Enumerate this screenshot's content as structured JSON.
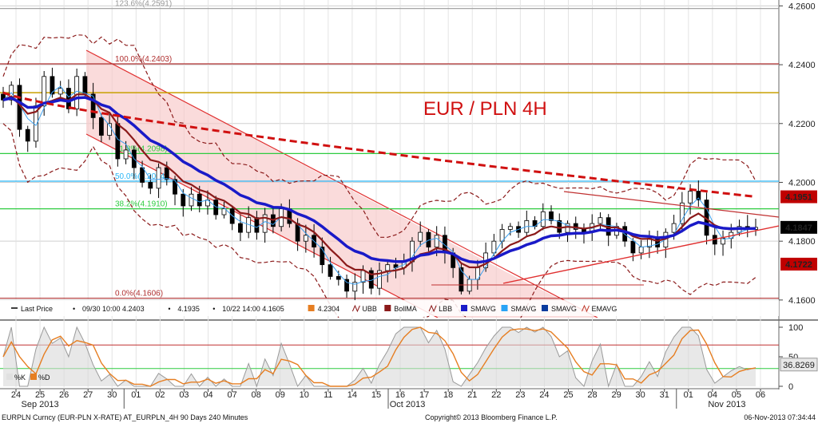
{
  "chart_data": {
    "type": "candlestick",
    "title": "EUR / PLN 4H",
    "footer": {
      "left": "EURPLN Curncy (EUR-PLN X-RATE) AT_EURPLN_4H 90 Days 240 Minutes",
      "center": "Copyright© 2013 Bloomberg Finance L.P.",
      "right": "06-Nov-2013 07:34:44"
    },
    "y_axis": {
      "range": [
        4.154,
        4.262
      ],
      "ticks": [
        "4.2600",
        "4.2400",
        "4.2200",
        "4.2000",
        "4.1800",
        "4.1600"
      ],
      "tick_values": [
        4.26,
        4.24,
        4.22,
        4.2,
        4.18,
        4.16
      ]
    },
    "price_tags": [
      {
        "label": "4.1951",
        "value": 4.1951,
        "color": "#c00000"
      },
      {
        "label": "4.1847",
        "value": 4.1847,
        "color": "#000000"
      },
      {
        "label": "4.1722",
        "value": 4.1722,
        "color": "#c00000"
      }
    ],
    "x_axis": {
      "ticks": [
        "24",
        "25",
        "26",
        "27",
        "30",
        "01",
        "02",
        "03",
        "04",
        "07",
        "08",
        "09",
        "10",
        "11",
        "14",
        "15",
        "16",
        "17",
        "18",
        "21",
        "22",
        "23",
        "24",
        "25",
        "28",
        "29",
        "30",
        "31",
        "01",
        "04",
        "05",
        "06"
      ],
      "months": [
        "Sep 2013",
        "Oct 2013",
        "Nov 2013"
      ]
    },
    "fibonacci": [
      {
        "label": "123.6%(4.2591)",
        "value": 4.2591,
        "color": "#999999"
      },
      {
        "label": "100.0%(4.2403)",
        "value": 4.2403,
        "color": "#b03030"
      },
      {
        "label": "61.8%(4.2098)",
        "value": 4.2098,
        "color": "#2ecc40"
      },
      {
        "label": "50.0%(4.2004)",
        "value": 4.2004,
        "color": "#29b6f6"
      },
      {
        "label": "38.2%(4.1910)",
        "value": 4.191,
        "color": "#2ecc40"
      },
      {
        "label": "0.0%(4.1606)",
        "value": 4.1606,
        "color": "#b03030"
      }
    ],
    "extra_levels": [
      4.2305
    ],
    "legend": [
      {
        "label": "Last Price",
        "color": "#000000"
      },
      {
        "label": "09/30 10:00 4.2403",
        "color": "#000000"
      },
      {
        "label": "4.1935",
        "color": "#000000"
      },
      {
        "label": "10/22 14:00 4.1605",
        "color": "#000000"
      },
      {
        "label": "4.2304",
        "color": "#e67e22"
      },
      {
        "label": "UBB",
        "color": "#8b1a1a"
      },
      {
        "label": "BollMA",
        "color": "#8b1a1a"
      },
      {
        "label": "LBB",
        "color": "#8b1a1a"
      },
      {
        "label": "SMAVG",
        "color": "#1a1ac8"
      },
      {
        "label": "SMAVG",
        "color": "#29a3f6"
      },
      {
        "label": "SMAVG",
        "color": "#0b3b9e"
      },
      {
        "label": "EMAVG",
        "color": "#c0392b"
      }
    ],
    "oscillator": {
      "ticks": [
        "100",
        "50",
        "0"
      ],
      "tick_values": [
        100,
        50,
        0
      ],
      "levels": [
        70,
        30
      ],
      "value_tag": "36.8269",
      "legend": [
        "%K",
        "%D"
      ]
    },
    "close_series": [
      4.228,
      4.233,
      4.218,
      4.214,
      4.226,
      4.236,
      4.23,
      4.232,
      4.225,
      4.236,
      4.23,
      4.222,
      4.216,
      4.22,
      4.208,
      4.211,
      4.205,
      4.2,
      4.198,
      4.205,
      4.201,
      4.196,
      4.192,
      4.196,
      4.192,
      4.194,
      4.189,
      4.191,
      4.186,
      4.183,
      4.188,
      4.183,
      4.189,
      4.185,
      4.191,
      4.186,
      4.18,
      4.182,
      4.178,
      4.172,
      4.168,
      4.167,
      4.163,
      4.166,
      4.17,
      4.164,
      4.17,
      4.172,
      4.171,
      4.173,
      4.18,
      4.183,
      4.178,
      4.182,
      4.176,
      4.171,
      4.163,
      4.167,
      4.171,
      4.176,
      4.18,
      4.184,
      4.185,
      4.183,
      4.187,
      4.185,
      4.19,
      4.187,
      4.183,
      4.186,
      4.184,
      4.183,
      4.186,
      4.188,
      4.182,
      4.185,
      4.18,
      4.176,
      4.178,
      4.181,
      4.178,
      4.183,
      4.186,
      4.193,
      4.197,
      4.194,
      4.182,
      4.179,
      4.181,
      4.183,
      4.185,
      4.184,
      4.1847
    ]
  }
}
